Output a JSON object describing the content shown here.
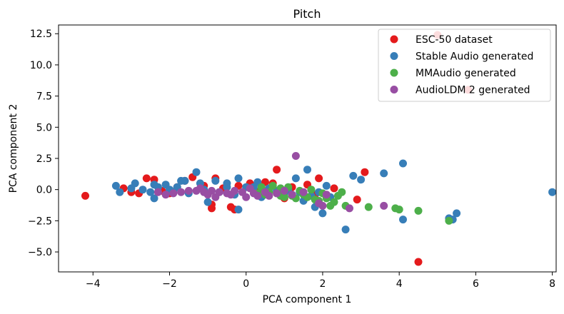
{
  "chart_data": {
    "type": "scatter",
    "title": "Pitch",
    "xlabel": "PCA component 1",
    "ylabel": "PCA component 2",
    "xlim": [
      -4.9,
      8.1
    ],
    "ylim": [
      -6.6,
      13.2
    ],
    "xticks": [
      -4,
      -2,
      0,
      2,
      4,
      6,
      8
    ],
    "xtick_labels": [
      "−4",
      "−2",
      "0",
      "2",
      "4",
      "6",
      "8"
    ],
    "yticks": [
      -5,
      -2.5,
      0,
      2.5,
      5,
      7.5,
      10,
      12.5
    ],
    "ytick_labels": [
      "−5.0",
      "−2.5",
      "0.0",
      "2.5",
      "5.0",
      "7.5",
      "10.0",
      "12.5"
    ],
    "legend_position": "top-right",
    "series": [
      {
        "name": "ESC-50 dataset",
        "color": "#e41a1c",
        "points": [
          [
            -4.2,
            -0.5
          ],
          [
            5.0,
            12.4
          ],
          [
            5.8,
            8.0
          ],
          [
            4.5,
            -5.8
          ],
          [
            3.1,
            1.4
          ],
          [
            0.8,
            1.6
          ],
          [
            1.9,
            0.9
          ],
          [
            2.9,
            -0.8
          ],
          [
            -2.6,
            0.9
          ],
          [
            -2.4,
            0.8
          ],
          [
            -3.0,
            -0.2
          ],
          [
            -2.8,
            -0.3
          ],
          [
            -3.2,
            0.1
          ],
          [
            -2.2,
            -0.1
          ],
          [
            -1.4,
            1.0
          ],
          [
            -0.8,
            0.9
          ],
          [
            -0.9,
            -1.2
          ],
          [
            -0.9,
            -1.5
          ],
          [
            -0.4,
            -1.4
          ],
          [
            -0.3,
            -1.6
          ],
          [
            0.1,
            0.5
          ],
          [
            0.5,
            0.6
          ],
          [
            0.7,
            0.5
          ],
          [
            1.2,
            0.2
          ],
          [
            1.6,
            0.4
          ],
          [
            -1.8,
            0.2
          ],
          [
            -1.1,
            0.3
          ],
          [
            -0.6,
            0.1
          ],
          [
            -0.2,
            0.3
          ],
          [
            0.3,
            -0.2
          ],
          [
            1.0,
            -0.7
          ],
          [
            1.8,
            -0.4
          ],
          [
            2.3,
            0.1
          ],
          [
            -2.0,
            -0.3
          ],
          [
            -1.6,
            0.7
          ]
        ]
      },
      {
        "name": "Stable Audio generated",
        "color": "#377eb8",
        "points": [
          [
            8.0,
            -0.2
          ],
          [
            4.1,
            2.1
          ],
          [
            3.6,
            1.3
          ],
          [
            4.1,
            -2.4
          ],
          [
            5.3,
            -2.3
          ],
          [
            5.5,
            -1.9
          ],
          [
            5.4,
            -2.4
          ],
          [
            2.6,
            -3.2
          ],
          [
            2.8,
            1.1
          ],
          [
            3.0,
            0.8
          ],
          [
            2.0,
            -1.9
          ],
          [
            2.1,
            0.3
          ],
          [
            1.6,
            1.6
          ],
          [
            1.3,
            0.9
          ],
          [
            -0.2,
            0.9
          ],
          [
            -0.5,
            0.5
          ],
          [
            -1.3,
            1.4
          ],
          [
            -1.6,
            0.7
          ],
          [
            -1.7,
            0.7
          ],
          [
            -3.4,
            0.3
          ],
          [
            -3.3,
            -0.2
          ],
          [
            -2.9,
            0.5
          ],
          [
            -2.5,
            -0.2
          ],
          [
            -2.4,
            0.4
          ],
          [
            -2.3,
            0.2
          ],
          [
            -2.1,
            0.4
          ],
          [
            -2.0,
            0.0
          ],
          [
            -1.9,
            -0.2
          ],
          [
            -1.8,
            0.2
          ],
          [
            -2.4,
            -0.7
          ],
          [
            -1.1,
            0.0
          ],
          [
            -1.0,
            -1.0
          ],
          [
            -0.8,
            0.7
          ],
          [
            -0.7,
            -0.2
          ],
          [
            -0.5,
            0.2
          ],
          [
            -0.3,
            -0.4
          ],
          [
            -0.2,
            -1.6
          ],
          [
            0.0,
            0.2
          ],
          [
            0.2,
            0.2
          ],
          [
            0.4,
            -0.6
          ],
          [
            0.6,
            0.1
          ],
          [
            0.8,
            -0.1
          ],
          [
            1.0,
            -0.3
          ],
          [
            1.1,
            0.0
          ],
          [
            1.4,
            -0.2
          ],
          [
            1.5,
            -0.9
          ],
          [
            1.7,
            -0.5
          ],
          [
            1.8,
            -1.4
          ],
          [
            1.9,
            -0.2
          ],
          [
            2.2,
            -0.6
          ],
          [
            -3.0,
            0.1
          ],
          [
            -2.7,
            0.0
          ],
          [
            -1.5,
            -0.3
          ],
          [
            -1.2,
            0.5
          ],
          [
            0.3,
            0.6
          ]
        ]
      },
      {
        "name": "MMAudio generated",
        "color": "#4daf4a",
        "points": [
          [
            5.3,
            -2.5
          ],
          [
            4.5,
            -1.7
          ],
          [
            3.9,
            -1.5
          ],
          [
            4.0,
            -1.6
          ],
          [
            3.2,
            -1.4
          ],
          [
            2.6,
            -1.3
          ],
          [
            2.3,
            -1.0
          ],
          [
            2.2,
            -1.3
          ],
          [
            2.4,
            -0.5
          ],
          [
            1.8,
            -0.8
          ],
          [
            1.6,
            -0.6
          ],
          [
            1.5,
            -0.4
          ],
          [
            1.4,
            -0.1
          ],
          [
            1.2,
            -0.5
          ],
          [
            1.1,
            0.2
          ],
          [
            1.0,
            -0.6
          ],
          [
            0.9,
            0.1
          ],
          [
            0.8,
            -0.3
          ],
          [
            0.7,
            0.3
          ],
          [
            0.6,
            -0.2
          ],
          [
            0.5,
            -0.4
          ],
          [
            0.4,
            0.2
          ],
          [
            0.3,
            -0.3
          ],
          [
            2.0,
            -0.3
          ],
          [
            1.7,
            0.0
          ],
          [
            1.3,
            -0.7
          ],
          [
            2.1,
            -0.7
          ],
          [
            2.5,
            -0.2
          ],
          [
            0.9,
            -0.5
          ],
          [
            1.9,
            -0.9
          ]
        ]
      },
      {
        "name": "AudioLDM 2 generated",
        "color": "#984ea3",
        "points": [
          [
            1.3,
            2.7
          ],
          [
            3.6,
            -1.3
          ],
          [
            2.7,
            -1.5
          ],
          [
            2.0,
            -1.3
          ],
          [
            1.9,
            -1.1
          ],
          [
            2.1,
            -0.4
          ],
          [
            1.5,
            -0.2
          ],
          [
            1.2,
            -0.4
          ],
          [
            1.0,
            -0.1
          ],
          [
            0.8,
            -0.3
          ],
          [
            0.5,
            -0.2
          ],
          [
            0.3,
            -0.5
          ],
          [
            0.1,
            0.1
          ],
          [
            -0.1,
            -0.2
          ],
          [
            -0.3,
            -0.1
          ],
          [
            -0.5,
            -0.3
          ],
          [
            -0.7,
            -0.2
          ],
          [
            -0.9,
            -0.1
          ],
          [
            -1.1,
            -0.2
          ],
          [
            -1.3,
            -0.1
          ],
          [
            -1.5,
            -0.1
          ],
          [
            -1.7,
            -0.2
          ],
          [
            -1.9,
            -0.3
          ],
          [
            -2.1,
            -0.4
          ],
          [
            -2.3,
            -0.2
          ],
          [
            0.0,
            -0.6
          ],
          [
            -0.4,
            -0.4
          ],
          [
            -0.8,
            -0.6
          ],
          [
            0.6,
            -0.5
          ],
          [
            -1.2,
            0.1
          ],
          [
            -1.0,
            -0.4
          ],
          [
            0.2,
            -0.3
          ]
        ]
      }
    ]
  }
}
